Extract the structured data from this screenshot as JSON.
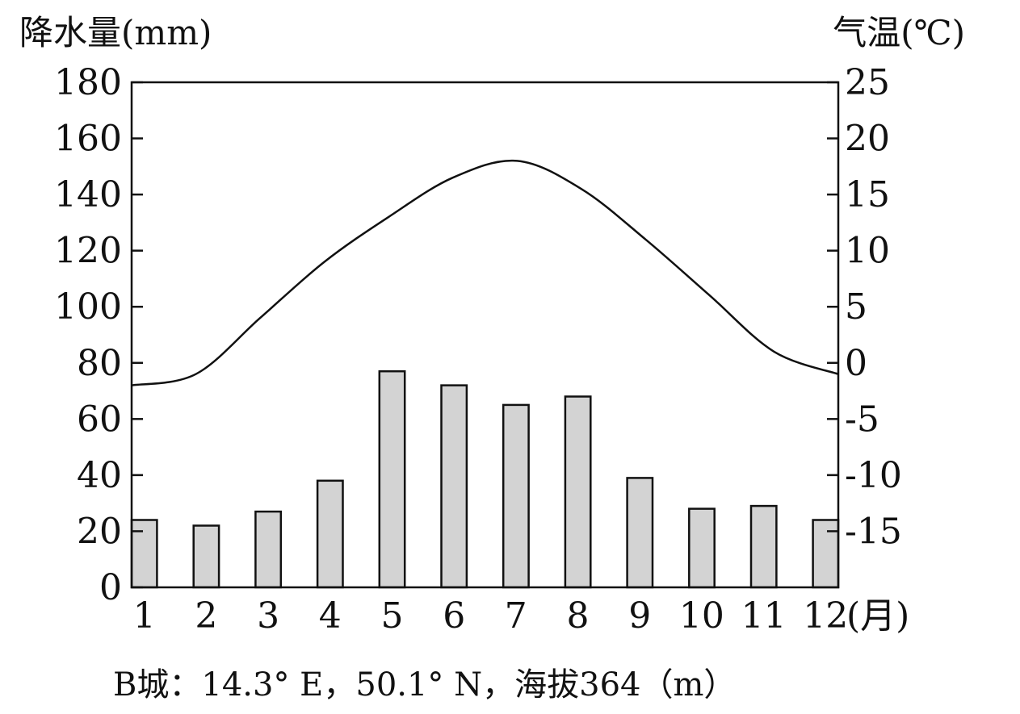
{
  "chart_data": {
    "type": "bar",
    "title": "",
    "categories": [
      "1",
      "2",
      "3",
      "4",
      "5",
      "6",
      "7",
      "8",
      "9",
      "10",
      "11",
      "12"
    ],
    "x_unit": "(月)",
    "left_axis": {
      "label": "降水量(mm)",
      "ylim": [
        0,
        180
      ],
      "ticks": [
        "0",
        "20",
        "40",
        "60",
        "80",
        "100",
        "120",
        "140",
        "160",
        "180"
      ]
    },
    "right_axis": {
      "label": "气温(℃)",
      "ylim": [
        -20,
        25
      ],
      "ticks": [
        "-15",
        "-10",
        "-5",
        "0",
        "5",
        "10",
        "15",
        "20",
        "25"
      ]
    },
    "series": [
      {
        "type": "bar",
        "axis": "left",
        "values": [
          24,
          22,
          27,
          38,
          77,
          72,
          65,
          68,
          39,
          28,
          29,
          24
        ],
        "color": "#d3d3d3"
      },
      {
        "type": "line",
        "axis": "right",
        "values": [
          -2,
          -1,
          4,
          9,
          13,
          16.5,
          18,
          15.5,
          11,
          6,
          1,
          -1
        ],
        "color": "#111111"
      }
    ],
    "caption": "B城：14.3° E，50.1° N，海拔364（m）",
    "grid": false
  }
}
